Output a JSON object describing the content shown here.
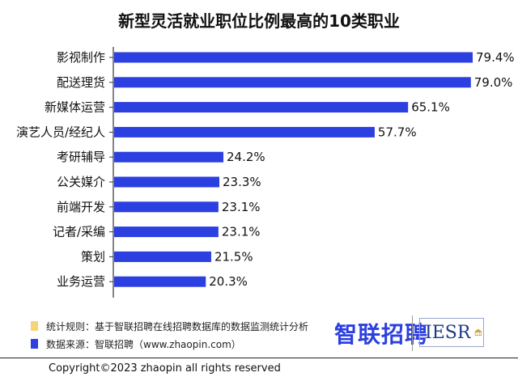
{
  "title": "新型灵活就业职位比例最高的10类职业",
  "chart_data": {
    "type": "bar",
    "orientation": "horizontal",
    "categories": [
      "影视制作",
      "配送理货",
      "新媒体运营",
      "演艺人员/经纪人",
      "考研辅导",
      "公关媒介",
      "前端开发",
      "记者/采编",
      "策划",
      "业务运营"
    ],
    "values": [
      79.4,
      79.0,
      65.1,
      57.7,
      24.2,
      23.3,
      23.1,
      23.1,
      21.5,
      20.3
    ],
    "value_labels": [
      "79.4%",
      "79.0%",
      "65.1%",
      "57.7%",
      "24.2%",
      "23.3%",
      "23.1%",
      "23.1%",
      "21.5%",
      "20.3%"
    ],
    "unit": "%",
    "xlim": [
      0,
      80
    ],
    "grid": false,
    "bar_color": "#2c3fe0"
  },
  "footer": {
    "note_rules": "统计规则：基于智联招聘在线招聘数据库的数据监测统计分析",
    "note_source": "数据来源：智联招聘（www.zhaopin.com）",
    "logo_zhaopin": "智联招聘",
    "logo_iesr": "IESR",
    "copyright": "Copyright©2023 zhaopin all rights reserved"
  },
  "colors": {
    "yellow_swatch": "#f6d57a",
    "blue_swatch": "#2f3fe0"
  }
}
